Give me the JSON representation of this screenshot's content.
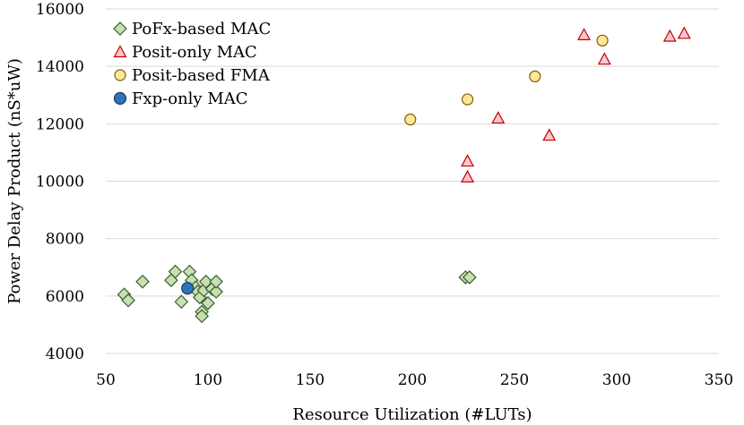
{
  "chart_data": {
    "type": "scatter",
    "title": "",
    "xlabel": "Resource Utilization (#LUTs)",
    "ylabel": "Power Delay Product (nS*uW)",
    "xlim": [
      50,
      350
    ],
    "ylim": [
      4000,
      16000
    ],
    "xticks": [
      50,
      100,
      150,
      200,
      250,
      300,
      350
    ],
    "yticks": [
      4000,
      6000,
      8000,
      10000,
      12000,
      14000,
      16000
    ],
    "grid": "horizontal",
    "legend_position": "top-left",
    "series": [
      {
        "name": "PoFx-based MAC",
        "marker": "diamond",
        "color": "#c6e0b4",
        "stroke": "#3b5e2b",
        "points": [
          [
            59,
            6050
          ],
          [
            61,
            5850
          ],
          [
            68,
            6500
          ],
          [
            82,
            6550
          ],
          [
            84,
            6850
          ],
          [
            87,
            5800
          ],
          [
            91,
            6850
          ],
          [
            92,
            6550
          ],
          [
            94,
            6300
          ],
          [
            95,
            6150
          ],
          [
            96,
            5950
          ],
          [
            97,
            5450
          ],
          [
            97,
            5300
          ],
          [
            98,
            6200
          ],
          [
            99,
            6500
          ],
          [
            100,
            5750
          ],
          [
            102,
            6250
          ],
          [
            104,
            6150
          ],
          [
            104,
            6500
          ],
          [
            226,
            6650
          ],
          [
            228,
            6650
          ]
        ]
      },
      {
        "name": "Posit-only MAC",
        "marker": "triangle",
        "color": "#ffc7ce",
        "stroke": "#c00000",
        "points": [
          [
            227,
            10700
          ],
          [
            227,
            10150
          ],
          [
            242,
            12200
          ],
          [
            267,
            11600
          ],
          [
            284,
            15100
          ],
          [
            294,
            14250
          ],
          [
            326,
            15050
          ],
          [
            333,
            15150
          ]
        ]
      },
      {
        "name": "Posit-based FMA",
        "marker": "circle",
        "color": "#ffe699",
        "stroke": "#7f6000",
        "points": [
          [
            199,
            12150
          ],
          [
            227,
            12850
          ],
          [
            260,
            13650
          ],
          [
            293,
            14900
          ]
        ]
      },
      {
        "name": "Fxp-only MAC",
        "marker": "circle",
        "color": "#2e75b6",
        "stroke": "#1f3864",
        "points": [
          [
            90,
            6270
          ]
        ]
      }
    ]
  }
}
